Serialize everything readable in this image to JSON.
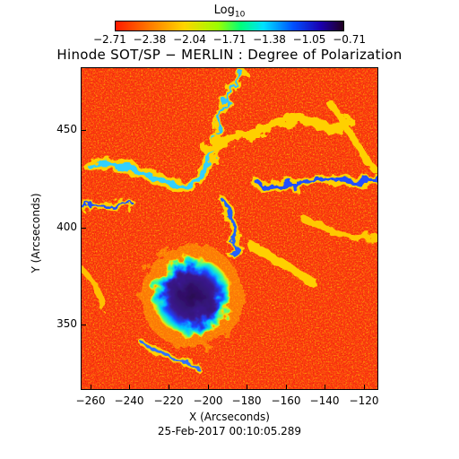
{
  "colorbar": {
    "title": "Log",
    "title_sub": "10",
    "ticks": [
      "−2.71",
      "−2.38",
      "−2.04",
      "−1.71",
      "−1.38",
      "−1.05",
      "−0.71"
    ]
  },
  "title": "Hinode SOT/SP − MERLIN : Degree of Polarization",
  "axes": {
    "xlabel": "X (Arcseconds)",
    "ylabel": "Y (Arcseconds)",
    "xticks": [
      "−260",
      "−240",
      "−220",
      "−200",
      "−180",
      "−160",
      "−140",
      "−120"
    ],
    "yticks": [
      "450",
      "400",
      "350"
    ]
  },
  "timestamp": "25-Feb-2017 00:10:05.289",
  "colors": {
    "background_red": "#ff3a10",
    "sunspot_umbra": "#2a0a50",
    "penumbra_blue": "#2040ff"
  }
}
